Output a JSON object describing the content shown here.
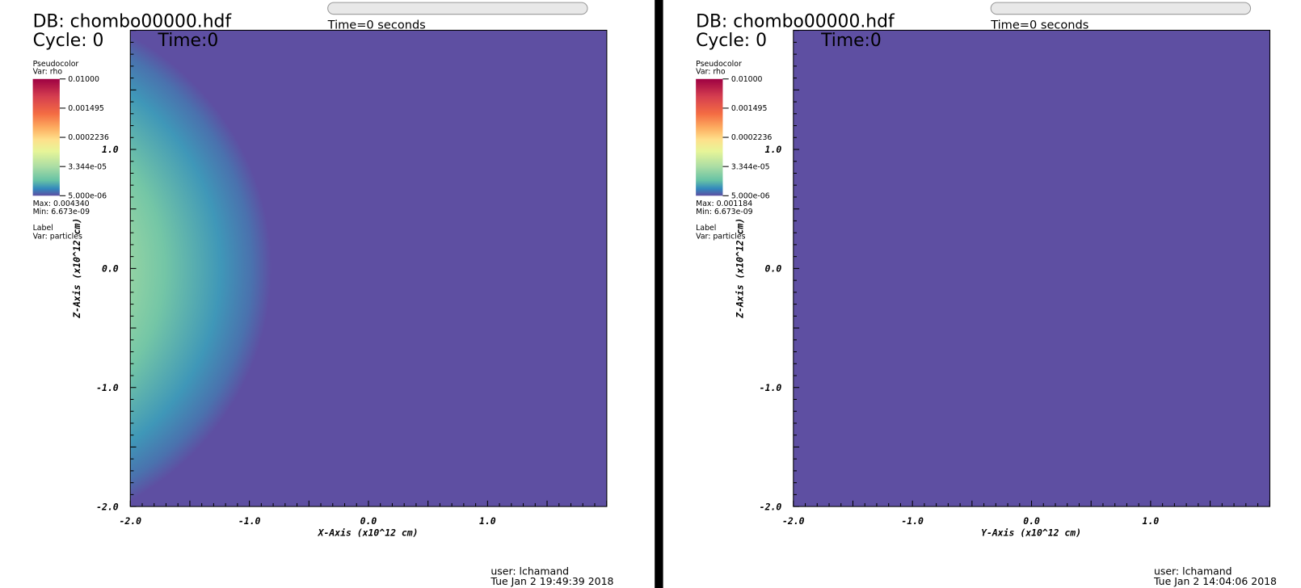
{
  "panels": [
    {
      "db": "DB: chombo00000.hdf",
      "cycle": "Cycle: 0",
      "time": "Time:0",
      "time_slider": "Time=0 seconds",
      "legend": {
        "plot": "Pseudocolor",
        "var": "Var: rho",
        "labels": [
          "0.01000",
          "0.001495",
          "0.0002236",
          "3.344e-05",
          "5.000e-06"
        ],
        "max": "Max:  0.004340",
        "min": "Min:  6.673e-09",
        "label": "Label",
        "label_var": "Var: particles"
      },
      "x_axis": {
        "title": "X-Axis (x10^12 cm)",
        "ticks": [
          "-2.0",
          "-1.0",
          "0.0",
          "1.0"
        ]
      },
      "z_axis": {
        "title": "Z-Axis (x10^12 cm)",
        "ticks": [
          "-2.0",
          "-1.0",
          "0.0",
          "1.0"
        ]
      },
      "user": "user: lchamand",
      "date": "Tue Jan  2 19:49:39 2018"
    },
    {
      "db": "DB: chombo00000.hdf",
      "cycle": "Cycle: 0",
      "time": "Time:0",
      "time_slider": "Time=0 seconds",
      "legend": {
        "plot": "Pseudocolor",
        "var": "Var: rho",
        "labels": [
          "0.01000",
          "0.001495",
          "0.0002236",
          "3.344e-05",
          "5.000e-06"
        ],
        "max": "Max:  0.001184",
        "min": "Min:  6.673e-09",
        "label": "Label",
        "label_var": "Var: particles"
      },
      "x_axis": {
        "title": "Y-Axis (x10^12 cm)",
        "ticks": [
          "-2.0",
          "-1.0",
          "0.0",
          "1.0"
        ]
      },
      "z_axis": {
        "title": "Z-Axis (x10^12 cm)",
        "ticks": [
          "-2.0",
          "-1.0",
          "0.0",
          "1.0"
        ]
      },
      "user": "user: lchamand",
      "date": "Tue Jan  2 14:04:06 2018"
    }
  ]
}
